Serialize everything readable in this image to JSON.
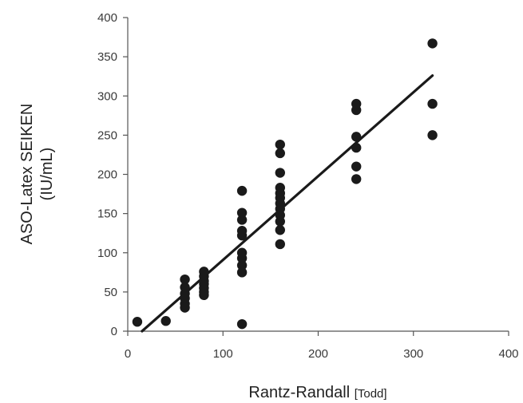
{
  "chart_data": {
    "type": "scatter",
    "title": "",
    "xlabel_main": "Rantz-Randall ",
    "xlabel_unit": "[Todd]",
    "ylabel_line1": "ASO-Latex SEIKEN",
    "ylabel_line2": "(IU/mL)",
    "xlim": [
      0,
      400
    ],
    "ylim": [
      0,
      400
    ],
    "xticks": [
      "0",
      "100",
      "200",
      "300",
      "400"
    ],
    "yticks": [
      "0",
      "50",
      "100",
      "150",
      "200",
      "250",
      "300",
      "350",
      "400"
    ],
    "grid": false,
    "legend": "none",
    "point_color": "#1a1a1a",
    "line_color": "#1a1a1a",
    "points": [
      {
        "x": 10,
        "y": 12
      },
      {
        "x": 40,
        "y": 13
      },
      {
        "x": 60,
        "y": 30
      },
      {
        "x": 60,
        "y": 35
      },
      {
        "x": 60,
        "y": 42
      },
      {
        "x": 60,
        "y": 48
      },
      {
        "x": 60,
        "y": 56
      },
      {
        "x": 60,
        "y": 66
      },
      {
        "x": 80,
        "y": 46
      },
      {
        "x": 80,
        "y": 50
      },
      {
        "x": 80,
        "y": 55
      },
      {
        "x": 80,
        "y": 60
      },
      {
        "x": 80,
        "y": 64
      },
      {
        "x": 80,
        "y": 70
      },
      {
        "x": 80,
        "y": 76
      },
      {
        "x": 120,
        "y": 9
      },
      {
        "x": 120,
        "y": 75
      },
      {
        "x": 120,
        "y": 84
      },
      {
        "x": 120,
        "y": 93
      },
      {
        "x": 120,
        "y": 100
      },
      {
        "x": 120,
        "y": 122
      },
      {
        "x": 120,
        "y": 128
      },
      {
        "x": 120,
        "y": 142
      },
      {
        "x": 120,
        "y": 151
      },
      {
        "x": 120,
        "y": 179
      },
      {
        "x": 160,
        "y": 111
      },
      {
        "x": 160,
        "y": 129
      },
      {
        "x": 160,
        "y": 140
      },
      {
        "x": 160,
        "y": 148
      },
      {
        "x": 160,
        "y": 156
      },
      {
        "x": 160,
        "y": 163
      },
      {
        "x": 160,
        "y": 170
      },
      {
        "x": 160,
        "y": 176
      },
      {
        "x": 160,
        "y": 183
      },
      {
        "x": 160,
        "y": 202
      },
      {
        "x": 160,
        "y": 227
      },
      {
        "x": 160,
        "y": 238
      },
      {
        "x": 240,
        "y": 194
      },
      {
        "x": 240,
        "y": 210
      },
      {
        "x": 240,
        "y": 234
      },
      {
        "x": 240,
        "y": 248
      },
      {
        "x": 240,
        "y": 282
      },
      {
        "x": 240,
        "y": 290
      },
      {
        "x": 320,
        "y": 250
      },
      {
        "x": 320,
        "y": 290
      },
      {
        "x": 320,
        "y": 367
      }
    ],
    "trendline": {
      "x": [
        15,
        320
      ],
      "y": [
        0,
        326
      ]
    }
  }
}
